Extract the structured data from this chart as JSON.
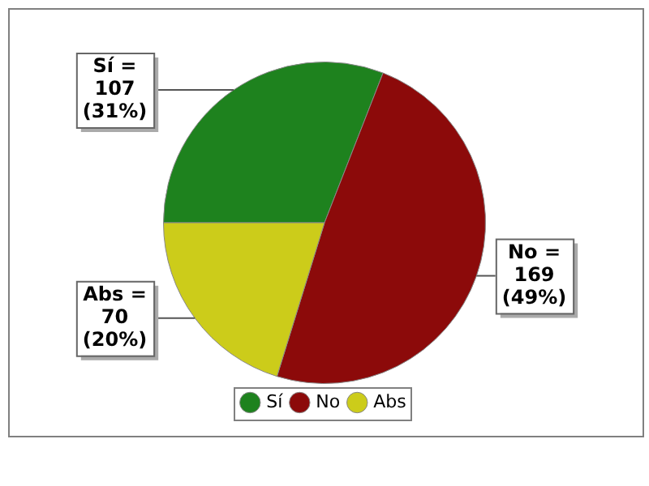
{
  "chart_data": {
    "type": "pie",
    "categories": [
      "Sí",
      "No",
      "Abs"
    ],
    "values": [
      107,
      169,
      70
    ],
    "colors": [
      "#1e821e",
      "#8c0a0a",
      "#cccc1a"
    ],
    "value_labels": [
      "Sí =\n107\n(31%)",
      "No =\n169\n(49%)",
      "Abs =\n70\n(20%)"
    ],
    "legend": "bottom"
  }
}
